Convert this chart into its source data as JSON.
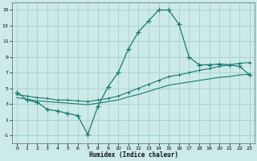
{
  "xlabel": "Humidex (Indice chaleur)",
  "background_color": "#cceae8",
  "grid_color": "#aad4d2",
  "line_color": "#1a7a6e",
  "xlim": [
    -0.5,
    23.5
  ],
  "ylim": [
    -2,
    16
  ],
  "xticks": [
    0,
    1,
    2,
    3,
    4,
    5,
    6,
    7,
    8,
    9,
    10,
    11,
    12,
    13,
    14,
    15,
    16,
    17,
    18,
    19,
    20,
    21,
    22,
    23
  ],
  "yticks": [
    -1,
    1,
    3,
    5,
    7,
    9,
    11,
    13,
    15
  ],
  "series1_x": [
    0,
    1,
    2,
    3,
    4,
    5,
    6,
    7,
    8,
    9,
    10,
    11,
    12,
    13,
    14,
    15,
    16,
    17,
    18,
    19,
    20,
    21,
    22,
    23
  ],
  "series1_y": [
    4.5,
    3.5,
    3.2,
    2.3,
    2.1,
    1.8,
    1.5,
    -0.9,
    2.7,
    5.2,
    7.0,
    10.0,
    12.2,
    13.6,
    15.0,
    15.0,
    13.2,
    9.0,
    8.0,
    8.0,
    8.1,
    8.0,
    7.8,
    6.7
  ],
  "series2_x": [
    0,
    1,
    2,
    3,
    4,
    5,
    6,
    7,
    8,
    9,
    10,
    11,
    12,
    13,
    14,
    15,
    16,
    17,
    18,
    19,
    20,
    21,
    22,
    23
  ],
  "series2_y": [
    4.2,
    4.0,
    3.8,
    3.7,
    3.5,
    3.5,
    3.4,
    3.3,
    3.5,
    3.7,
    4.0,
    4.5,
    5.0,
    5.5,
    6.0,
    6.5,
    6.7,
    7.0,
    7.3,
    7.5,
    7.8,
    8.0,
    8.2,
    8.3
  ],
  "series3_x": [
    0,
    1,
    2,
    3,
    4,
    5,
    6,
    7,
    8,
    9,
    10,
    11,
    12,
    13,
    14,
    15,
    16,
    17,
    18,
    19,
    20,
    21,
    22,
    23
  ],
  "series3_y": [
    3.8,
    3.6,
    3.4,
    3.3,
    3.2,
    3.1,
    3.0,
    2.9,
    3.1,
    3.3,
    3.5,
    3.9,
    4.2,
    4.6,
    5.0,
    5.4,
    5.6,
    5.8,
    6.0,
    6.2,
    6.4,
    6.5,
    6.7,
    6.8
  ]
}
